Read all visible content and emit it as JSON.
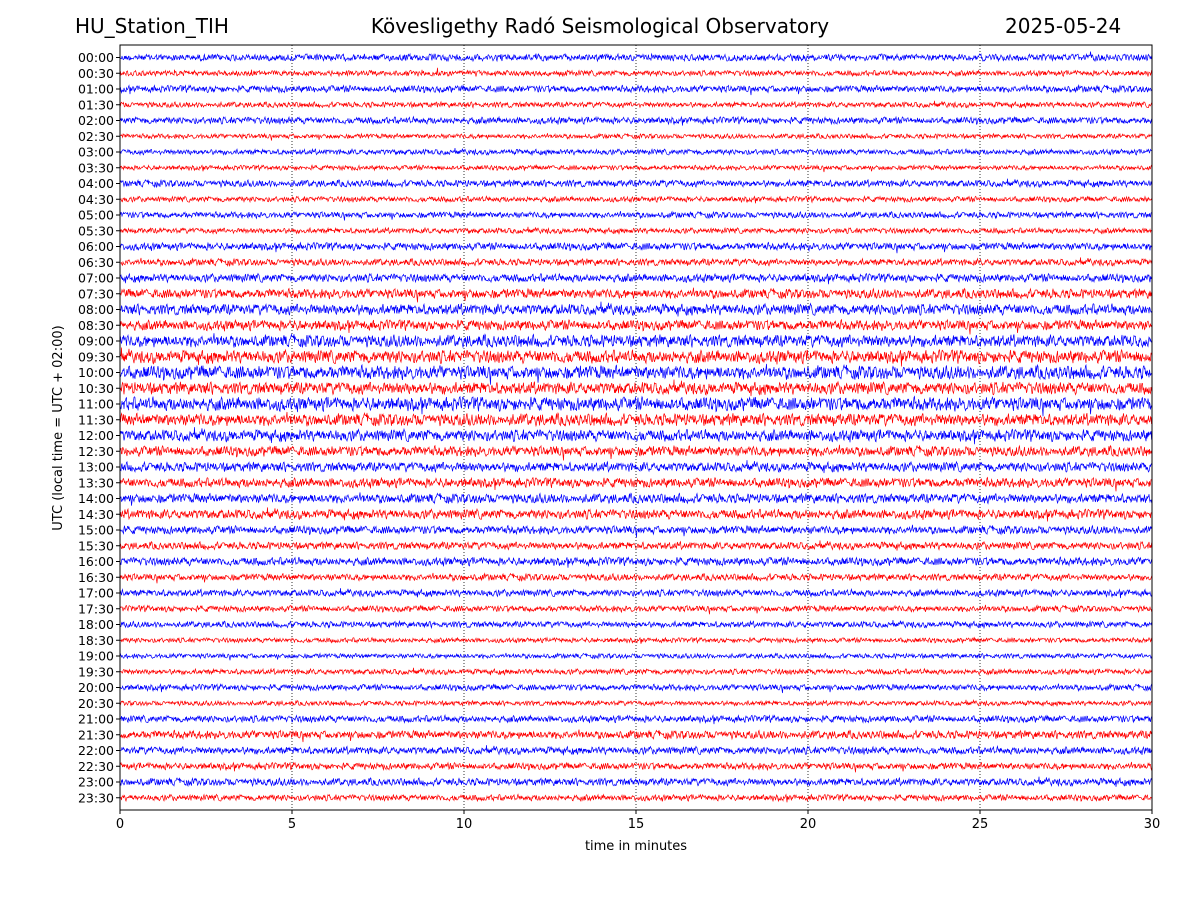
{
  "header": {
    "station": "HU_Station_TIH",
    "observatory": "Kövesligethy Radó Seismological Observatory",
    "date": "2025-05-24"
  },
  "chart_data": {
    "type": "line",
    "title": "Kövesligethy Radó Seismological Observatory",
    "xlabel": "time in minutes",
    "ylabel": "UTC (local time = UTC + 02:00)",
    "xlim": [
      0,
      30
    ],
    "x_ticks": [
      "0",
      "5",
      "10",
      "15",
      "20",
      "25",
      "30"
    ],
    "grid": "vertical dotted at x ticks",
    "rows": [
      "00:00",
      "00:30",
      "01:00",
      "01:30",
      "02:00",
      "02:30",
      "03:00",
      "03:30",
      "04:00",
      "04:30",
      "05:00",
      "05:30",
      "06:00",
      "06:30",
      "07:00",
      "07:30",
      "08:00",
      "08:30",
      "09:00",
      "09:30",
      "10:00",
      "10:30",
      "11:00",
      "11:30",
      "12:00",
      "12:30",
      "13:00",
      "13:30",
      "14:00",
      "14:30",
      "15:00",
      "15:30",
      "16:00",
      "16:30",
      "17:00",
      "17:30",
      "18:00",
      "18:30",
      "19:00",
      "19:30",
      "20:00",
      "20:30",
      "21:00",
      "21:30",
      "22:00",
      "22:30",
      "23:00",
      "23:30"
    ],
    "trace_colors": [
      "#0000ff",
      "#ff0000"
    ],
    "relative_amplitude": [
      0.5,
      0.4,
      0.5,
      0.4,
      0.5,
      0.35,
      0.4,
      0.35,
      0.5,
      0.4,
      0.45,
      0.4,
      0.55,
      0.5,
      0.6,
      0.7,
      0.8,
      0.75,
      0.9,
      0.95,
      1.0,
      0.9,
      1.0,
      0.9,
      0.85,
      0.75,
      0.7,
      0.7,
      0.7,
      0.7,
      0.6,
      0.55,
      0.6,
      0.5,
      0.5,
      0.45,
      0.45,
      0.35,
      0.35,
      0.4,
      0.45,
      0.35,
      0.5,
      0.6,
      0.55,
      0.5,
      0.55,
      0.45
    ]
  }
}
